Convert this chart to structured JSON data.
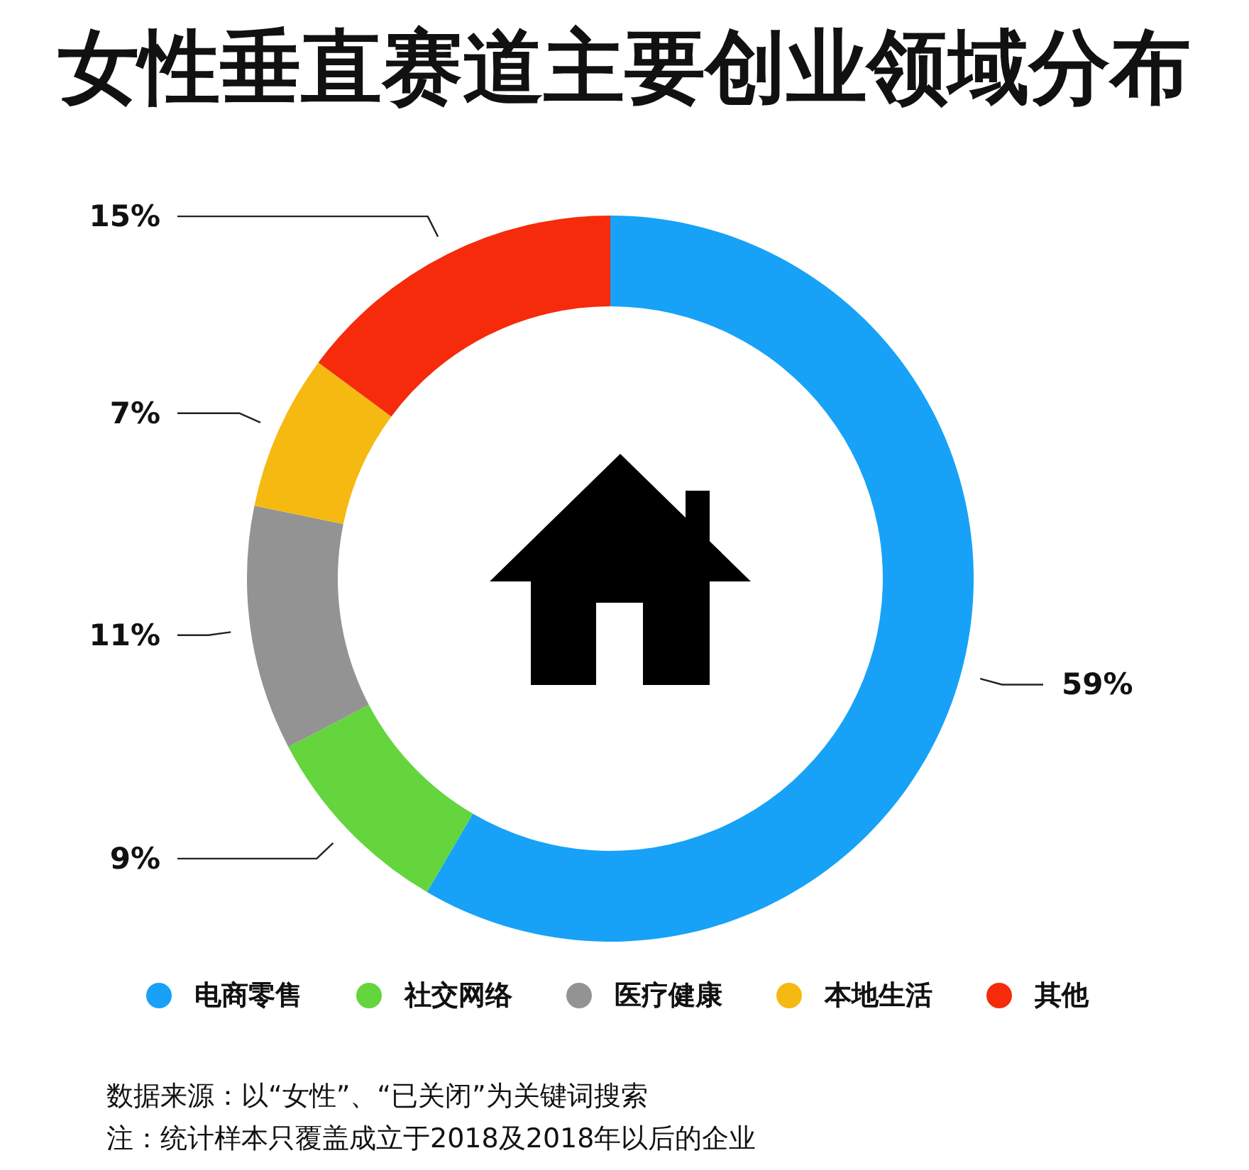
{
  "chart_data": {
    "type": "donut",
    "title": "女性垂直赛道主要创业领域分布",
    "categories": [
      "电商零售",
      "社交网络",
      "医疗健康",
      "本地生活",
      "其他"
    ],
    "values": [
      59,
      9,
      11,
      7,
      15
    ],
    "value_labels": [
      "59%",
      "9%",
      "11%",
      "7%",
      "15%"
    ],
    "colors": [
      "#17a2f7",
      "#64d53c",
      "#939393",
      "#f5b912",
      "#f52b0b"
    ],
    "legend": "bottom",
    "annotations": [
      "数据来源：以“女性”、“已关闭”为关键词搜索",
      "注：统计样本只覆盖成立于2018及2018年以后的企业"
    ]
  }
}
